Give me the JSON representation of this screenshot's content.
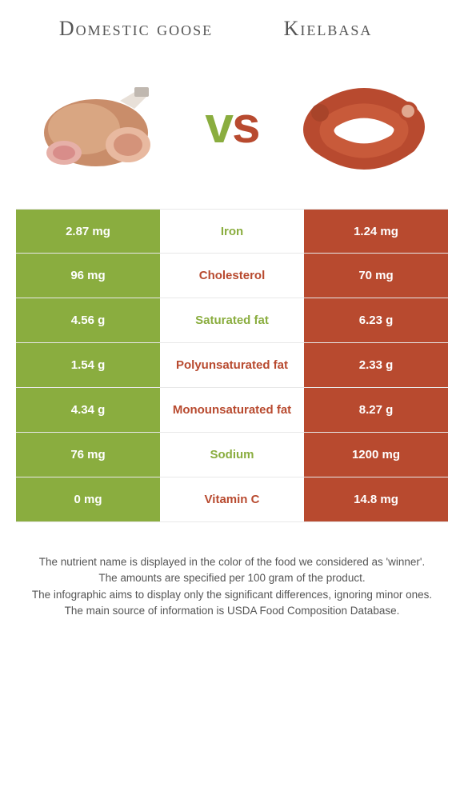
{
  "left_title": "Domestic goose",
  "right_title": "Kielbasa",
  "vs_v": "v",
  "vs_s": "s",
  "colors": {
    "left": "#8aad3f",
    "right": "#b84a2f"
  },
  "rows": [
    {
      "left": "2.87 mg",
      "label": "Iron",
      "right": "1.24 mg",
      "winner": "left"
    },
    {
      "left": "96 mg",
      "label": "Cholesterol",
      "right": "70 mg",
      "winner": "right"
    },
    {
      "left": "4.56 g",
      "label": "Saturated fat",
      "right": "6.23 g",
      "winner": "left"
    },
    {
      "left": "1.54 g",
      "label": "Polyunsaturated fat",
      "right": "2.33 g",
      "winner": "right"
    },
    {
      "left": "4.34 g",
      "label": "Monounsaturated fat",
      "right": "8.27 g",
      "winner": "right"
    },
    {
      "left": "76 mg",
      "label": "Sodium",
      "right": "1200 mg",
      "winner": "left"
    },
    {
      "left": "0 mg",
      "label": "Vitamin C",
      "right": "14.8 mg",
      "winner": "right"
    }
  ],
  "footer": [
    "The nutrient name is displayed in the color of the food we considered as 'winner'.",
    "The amounts are specified per 100 gram of the product.",
    "The infographic aims to display only the significant differences, ignoring minor ones.",
    "The main source of information is USDA Food Composition Database."
  ]
}
